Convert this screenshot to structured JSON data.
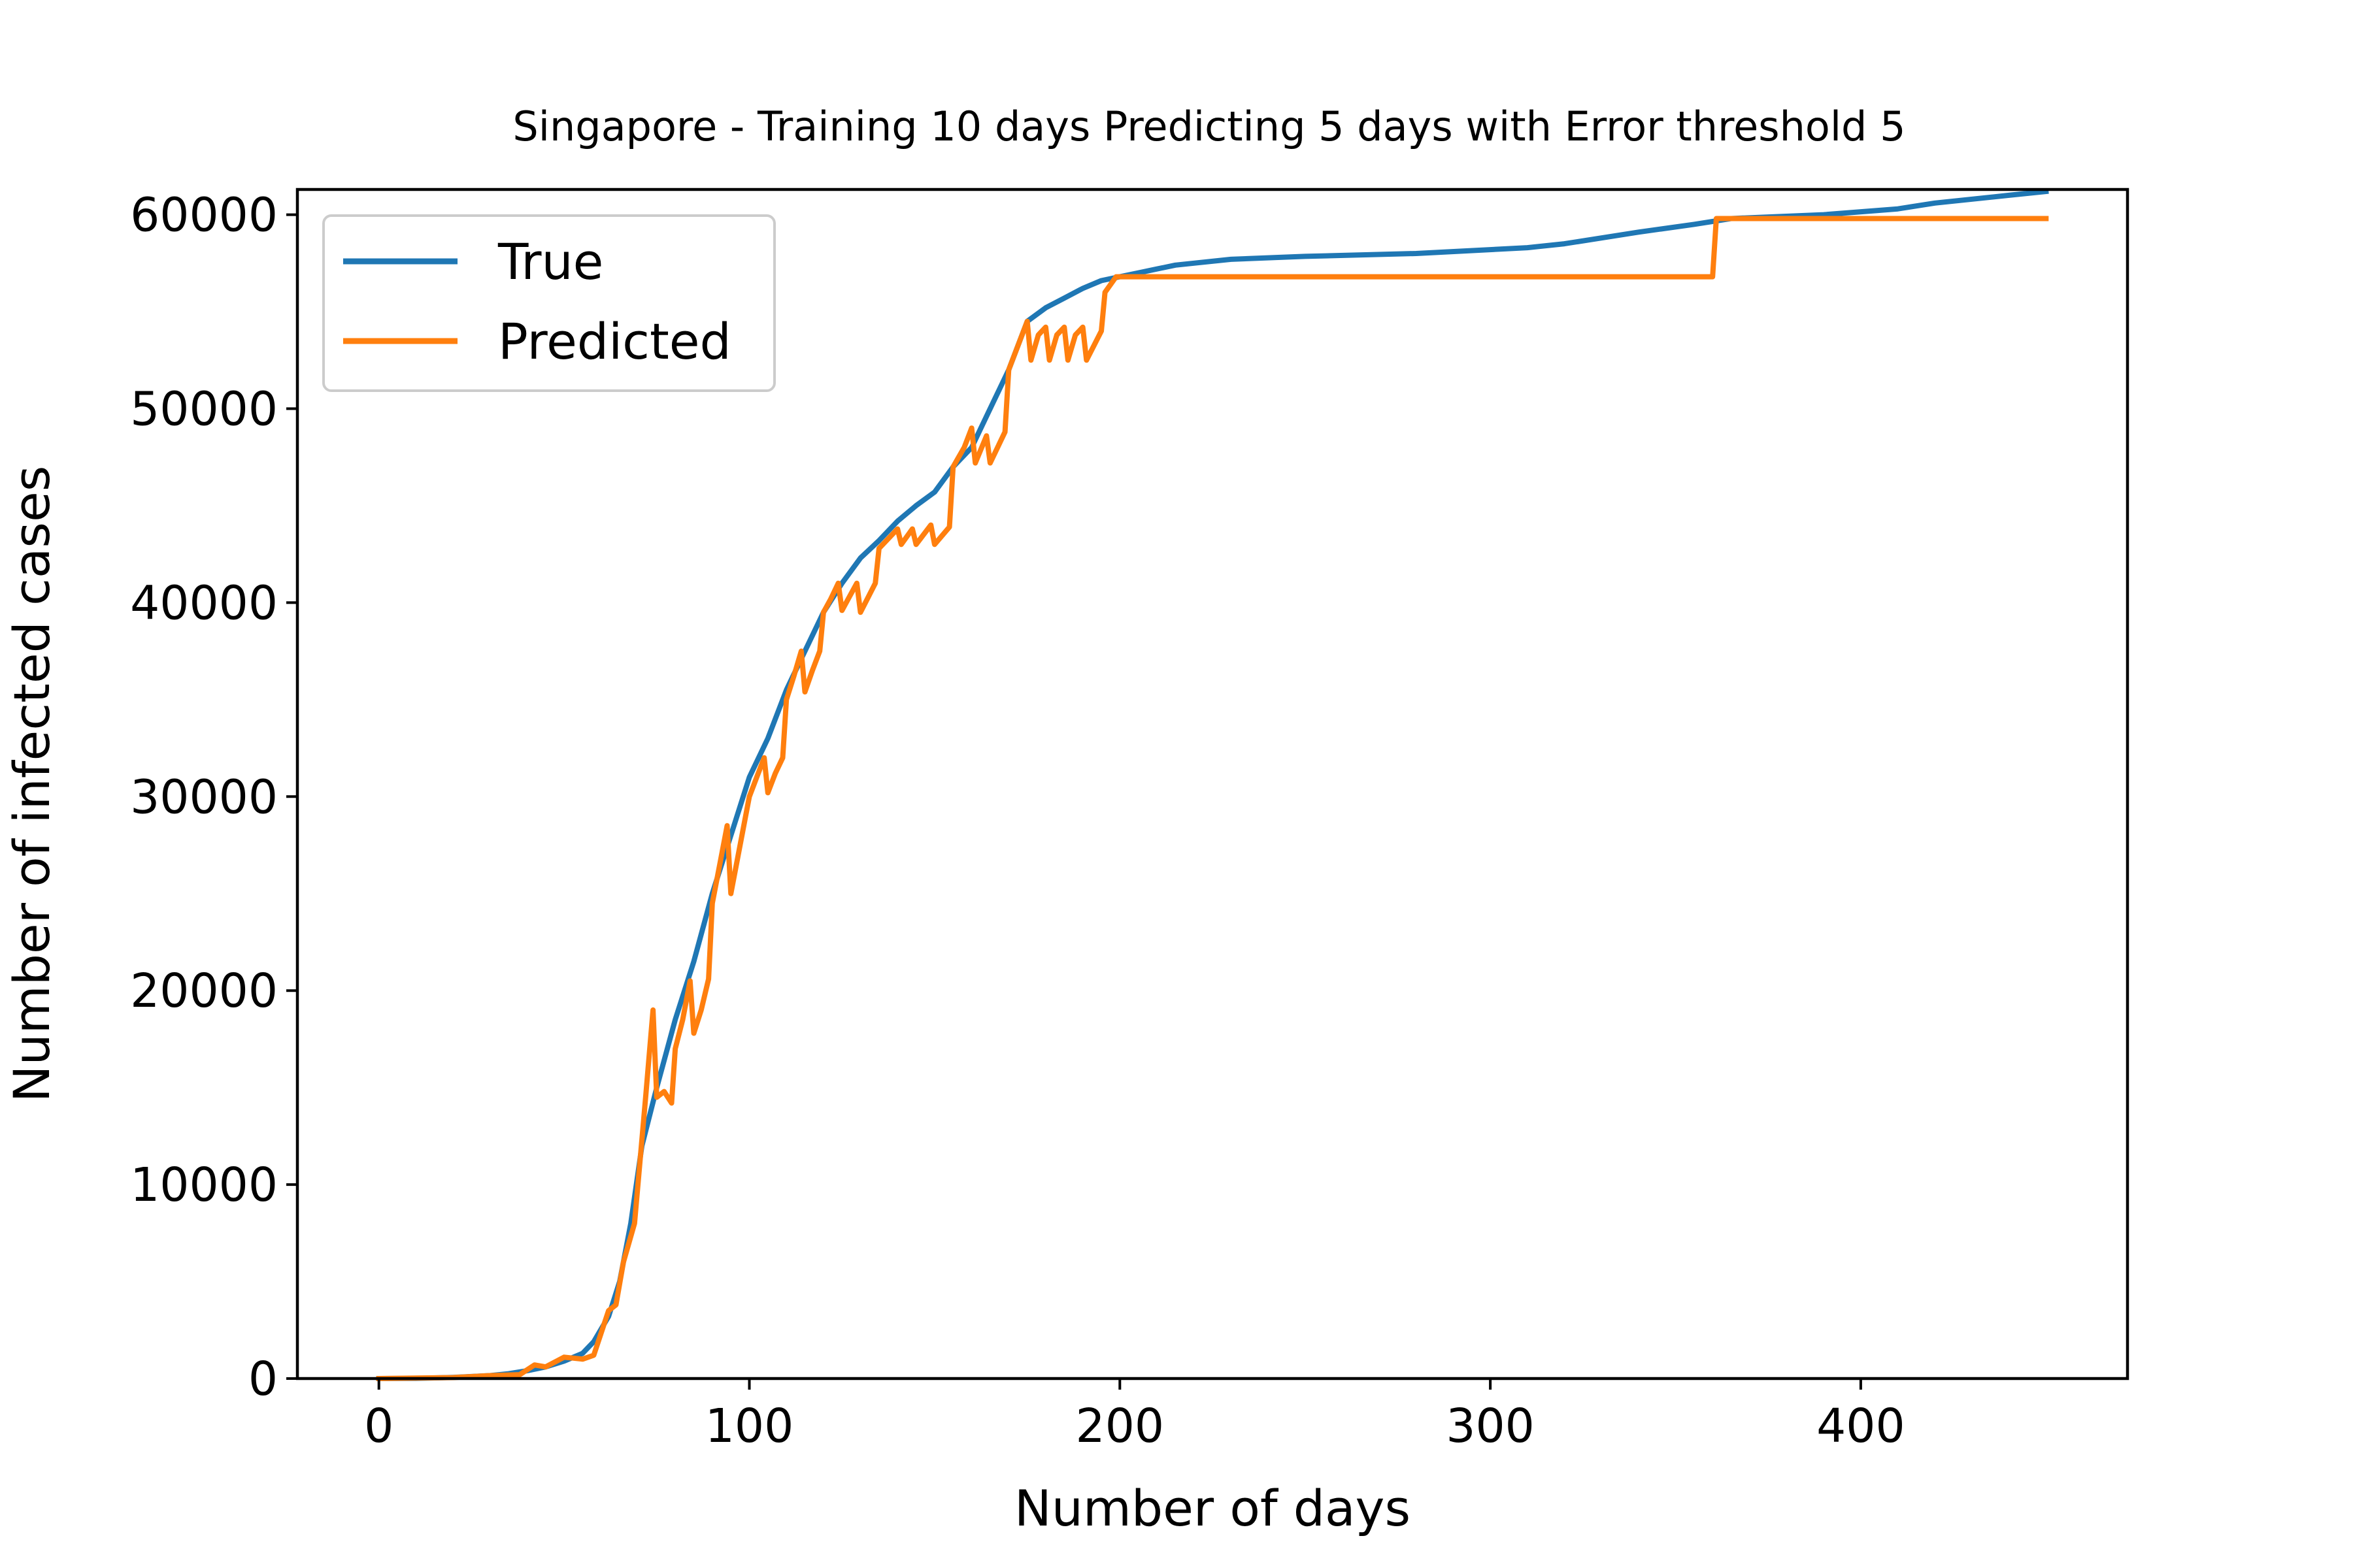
{
  "chart_data": {
    "type": "line",
    "title": "Singapore - Training 10 days Predicting 5 days with Error threshold 5",
    "xlabel": "Number of days",
    "ylabel": "Number of infected cases",
    "xlim": [
      -22,
      472
    ],
    "ylim": [
      0,
      61300
    ],
    "xticks": [
      0,
      100,
      200,
      300,
      400
    ],
    "yticks": [
      0,
      10000,
      20000,
      30000,
      40000,
      50000,
      60000
    ],
    "xtick_labels": [
      "0",
      "100",
      "200",
      "300",
      "400"
    ],
    "ytick_labels": [
      "0",
      "10000",
      "20000",
      "30000",
      "40000",
      "50000",
      "60000"
    ],
    "grid": false,
    "legend_position": "upper-left",
    "series": [
      {
        "name": "True",
        "color": "#1f77b4",
        "points": [
          [
            0,
            0
          ],
          [
            10,
            10
          ],
          [
            20,
            60
          ],
          [
            30,
            150
          ],
          [
            35,
            250
          ],
          [
            40,
            400
          ],
          [
            45,
            600
          ],
          [
            50,
            900
          ],
          [
            55,
            1300
          ],
          [
            58,
            1900
          ],
          [
            62,
            3200
          ],
          [
            65,
            5000
          ],
          [
            68,
            8000
          ],
          [
            71,
            12000
          ],
          [
            75,
            15000
          ],
          [
            80,
            18500
          ],
          [
            85,
            21500
          ],
          [
            90,
            25000
          ],
          [
            95,
            28000
          ],
          [
            100,
            31000
          ],
          [
            105,
            33000
          ],
          [
            110,
            35500
          ],
          [
            115,
            37500
          ],
          [
            120,
            39500
          ],
          [
            125,
            41000
          ],
          [
            130,
            42300
          ],
          [
            135,
            43200
          ],
          [
            140,
            44200
          ],
          [
            145,
            45000
          ],
          [
            150,
            45700
          ],
          [
            155,
            47000
          ],
          [
            160,
            48000
          ],
          [
            165,
            50000
          ],
          [
            170,
            52000
          ],
          [
            175,
            54500
          ],
          [
            180,
            55200
          ],
          [
            185,
            55700
          ],
          [
            190,
            56200
          ],
          [
            195,
            56600
          ],
          [
            200,
            56800
          ],
          [
            205,
            57000
          ],
          [
            210,
            57200
          ],
          [
            215,
            57400
          ],
          [
            220,
            57500
          ],
          [
            230,
            57700
          ],
          [
            250,
            57850
          ],
          [
            280,
            58000
          ],
          [
            310,
            58300
          ],
          [
            320,
            58500
          ],
          [
            340,
            59100
          ],
          [
            355,
            59500
          ],
          [
            365,
            59800
          ],
          [
            390,
            60000
          ],
          [
            410,
            60300
          ],
          [
            420,
            60600
          ],
          [
            440,
            61000
          ],
          [
            450,
            61200
          ]
        ]
      },
      {
        "name": "Predicted",
        "color": "#ff7f0e",
        "points": [
          [
            0,
            0
          ],
          [
            20,
            50
          ],
          [
            30,
            150
          ],
          [
            38,
            200
          ],
          [
            42,
            700
          ],
          [
            45,
            600
          ],
          [
            50,
            1100
          ],
          [
            55,
            1000
          ],
          [
            58,
            1200
          ],
          [
            62,
            3500
          ],
          [
            64,
            3800
          ],
          [
            66,
            6000
          ],
          [
            69,
            8000
          ],
          [
            72,
            14500
          ],
          [
            74,
            19000
          ],
          [
            75,
            14500
          ],
          [
            77,
            14800
          ],
          [
            79,
            14200
          ],
          [
            80,
            17000
          ],
          [
            82,
            18500
          ],
          [
            84,
            20500
          ],
          [
            85,
            17800
          ],
          [
            87,
            19000
          ],
          [
            89,
            20600
          ],
          [
            90,
            24500
          ],
          [
            92,
            26500
          ],
          [
            94,
            28500
          ],
          [
            95,
            25000
          ],
          [
            97,
            27000
          ],
          [
            99,
            29000
          ],
          [
            100,
            30000
          ],
          [
            102,
            31000
          ],
          [
            104,
            32000
          ],
          [
            105,
            30200
          ],
          [
            107,
            31200
          ],
          [
            109,
            32000
          ],
          [
            110,
            35000
          ],
          [
            112,
            36200
          ],
          [
            114,
            37500
          ],
          [
            115,
            35400
          ],
          [
            117,
            36500
          ],
          [
            119,
            37500
          ],
          [
            120,
            39500
          ],
          [
            122,
            40200
          ],
          [
            124,
            41000
          ],
          [
            125,
            39600
          ],
          [
            127,
            40300
          ],
          [
            129,
            41000
          ],
          [
            130,
            39500
          ],
          [
            134,
            41000
          ],
          [
            135,
            42800
          ],
          [
            138,
            43400
          ],
          [
            140,
            43800
          ],
          [
            141,
            43000
          ],
          [
            144,
            43800
          ],
          [
            145,
            43000
          ],
          [
            149,
            44000
          ],
          [
            150,
            43000
          ],
          [
            154,
            43900
          ],
          [
            155,
            47000
          ],
          [
            158,
            48000
          ],
          [
            160,
            49000
          ],
          [
            161,
            47200
          ],
          [
            164,
            48600
          ],
          [
            165,
            47200
          ],
          [
            169,
            48800
          ],
          [
            170,
            52000
          ],
          [
            173,
            53500
          ],
          [
            175,
            54500
          ],
          [
            176,
            52500
          ],
          [
            178,
            53800
          ],
          [
            180,
            54200
          ],
          [
            181,
            52500
          ],
          [
            183,
            53800
          ],
          [
            185,
            54200
          ],
          [
            186,
            52500
          ],
          [
            188,
            53800
          ],
          [
            190,
            54200
          ],
          [
            191,
            52500
          ],
          [
            195,
            54000
          ],
          [
            196,
            56000
          ],
          [
            199,
            56800
          ],
          [
            360,
            56800
          ],
          [
            361,
            59800
          ],
          [
            450,
            59800
          ]
        ]
      }
    ]
  }
}
